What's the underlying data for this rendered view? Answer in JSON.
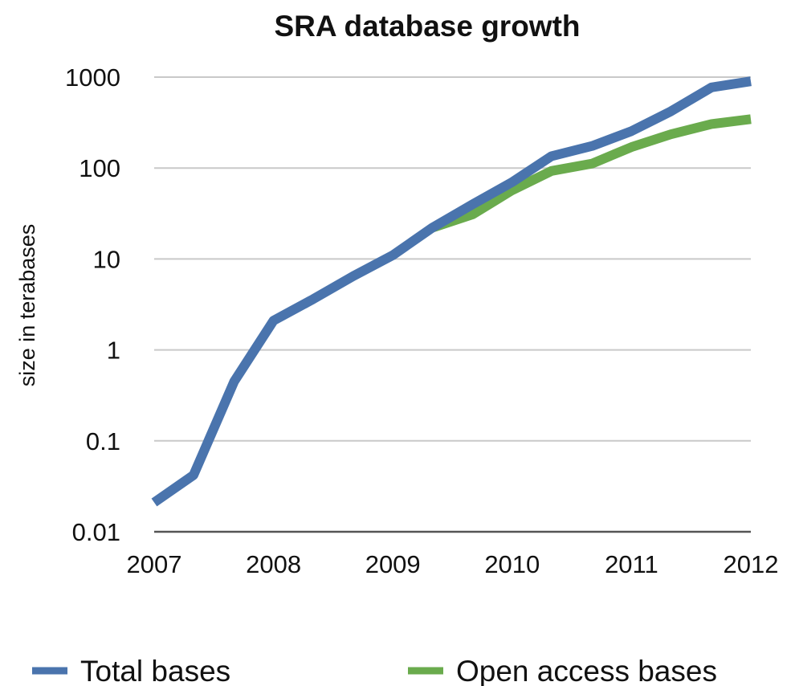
{
  "chart_data": {
    "type": "line",
    "title": "SRA database growth",
    "xlabel": "",
    "ylabel": "size in terabases",
    "yscale": "log",
    "ylim": [
      0.01,
      1000
    ],
    "xlim": [
      2007,
      2012
    ],
    "x_ticks": [
      "2007",
      "2008",
      "2009",
      "2010",
      "2011",
      "2012"
    ],
    "y_ticks": [
      "1000",
      "100",
      "10",
      "1",
      "0.1",
      "0.01"
    ],
    "grid": true,
    "legend_position": "bottom",
    "series": [
      {
        "name": "Total bases",
        "color": "#4a74ad",
        "points": [
          [
            2007.0,
            0.021
          ],
          [
            2007.33,
            0.042
          ],
          [
            2007.67,
            0.45
          ],
          [
            2008.0,
            2.1
          ],
          [
            2008.33,
            3.6
          ],
          [
            2008.67,
            6.5
          ],
          [
            2009.0,
            11
          ],
          [
            2009.33,
            22
          ],
          [
            2009.67,
            40
          ],
          [
            2010.0,
            70
          ],
          [
            2010.33,
            135
          ],
          [
            2010.67,
            175
          ],
          [
            2011.0,
            255
          ],
          [
            2011.33,
            420
          ],
          [
            2011.67,
            770
          ],
          [
            2012.0,
            900
          ]
        ]
      },
      {
        "name": "Open access bases",
        "color": "#6aab4d",
        "points": [
          [
            2009.33,
            22
          ],
          [
            2009.67,
            31
          ],
          [
            2010.0,
            57
          ],
          [
            2010.33,
            93
          ],
          [
            2010.67,
            112
          ],
          [
            2011.0,
            170
          ],
          [
            2011.33,
            235
          ],
          [
            2011.67,
            305
          ],
          [
            2012.0,
            345
          ]
        ]
      }
    ]
  }
}
